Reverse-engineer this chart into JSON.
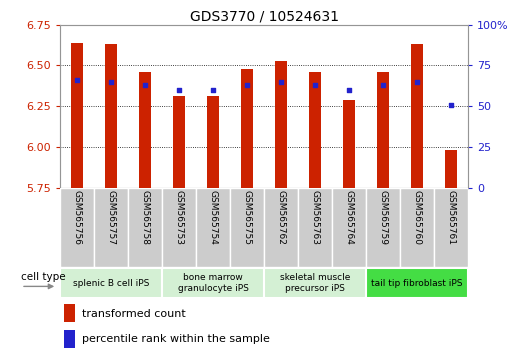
{
  "title": "GDS3770 / 10524631",
  "samples": [
    "GSM565756",
    "GSM565757",
    "GSM565758",
    "GSM565753",
    "GSM565754",
    "GSM565755",
    "GSM565762",
    "GSM565763",
    "GSM565764",
    "GSM565759",
    "GSM565760",
    "GSM565761"
  ],
  "transformed_count": [
    6.64,
    6.63,
    6.46,
    6.31,
    6.31,
    6.48,
    6.53,
    6.46,
    6.29,
    6.46,
    6.63,
    5.98
  ],
  "percentile_rank": [
    66,
    65,
    63,
    60,
    60,
    63,
    65,
    63,
    60,
    63,
    65,
    51
  ],
  "ylim_left": [
    5.75,
    6.75
  ],
  "ylim_right": [
    0,
    100
  ],
  "yticks_left": [
    5.75,
    6.0,
    6.25,
    6.5,
    6.75
  ],
  "yticks_right": [
    0,
    25,
    50,
    75,
    100
  ],
  "bar_color": "#cc2200",
  "dot_color": "#2222cc",
  "bar_bottom": 5.75,
  "cell_type_groups": [
    {
      "label": "splenic B cell iPS",
      "start": 0,
      "end": 2,
      "color": "#d4f0d4"
    },
    {
      "label": "bone marrow\ngranulocyte iPS",
      "start": 3,
      "end": 5,
      "color": "#d4f0d4"
    },
    {
      "label": "skeletal muscle\nprecursor iPS",
      "start": 6,
      "end": 8,
      "color": "#d4f0d4"
    },
    {
      "label": "tail tip fibroblast iPS",
      "start": 9,
      "end": 11,
      "color": "#44dd44"
    }
  ],
  "tick_label_color_left": "#cc2200",
  "tick_label_color_right": "#2222cc",
  "xtick_bg_color": "#cccccc",
  "legend_red_label": "transformed count",
  "legend_blue_label": "percentile rank within the sample"
}
